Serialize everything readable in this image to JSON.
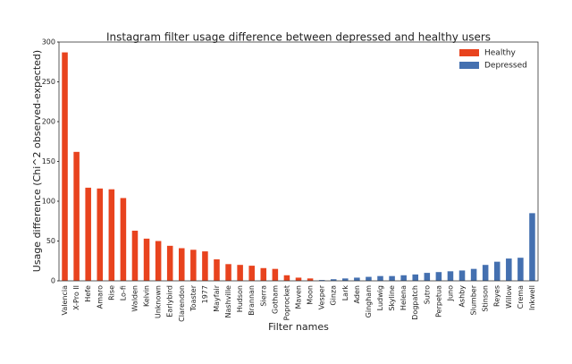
{
  "chart_data": {
    "type": "bar",
    "title": "Instagram filter usage difference between depressed and healthy users",
    "x_label": "Filter names",
    "y_label": "Usage difference (Chi^2 observed-expected)",
    "categories": [
      "Valencia",
      "X-Pro II",
      "Hefe",
      "Amaro",
      "Rise",
      "Lo-fi",
      "Walden",
      "Kelvin",
      "Unknown",
      "Earlybird",
      "Clarendon",
      "Toaster",
      "1977",
      "Mayfair",
      "Nashville",
      "Hudson",
      "Brannan",
      "Sierra",
      "Gotham",
      "Poprocket",
      "Maven",
      "Moon",
      "Vesper",
      "Ginza",
      "Lark",
      "Aden",
      "Gingham",
      "Ludwig",
      "Skyline",
      "Helena",
      "Dogpatch",
      "Sutro",
      "Perpetua",
      "Juno",
      "Ashby",
      "Slumber",
      "Stinson",
      "Reyes",
      "Willow",
      "Crema",
      "Inkwell"
    ],
    "series": [
      {
        "name": "Healthy",
        "color": "#e8431e",
        "values": [
          287,
          162,
          117,
          116,
          115,
          104,
          63,
          53,
          50,
          44,
          41,
          39,
          37,
          27,
          21,
          20,
          19,
          16,
          15,
          7,
          4,
          3,
          null,
          null,
          null,
          null,
          null,
          null,
          null,
          null,
          null,
          null,
          null,
          null,
          null,
          null,
          null,
          null,
          null,
          null,
          null
        ]
      },
      {
        "name": "Depressed",
        "color": "#4470b0",
        "values": [
          null,
          null,
          null,
          null,
          null,
          null,
          null,
          null,
          null,
          null,
          null,
          null,
          null,
          null,
          null,
          null,
          null,
          null,
          null,
          null,
          null,
          null,
          1,
          2,
          3,
          4,
          5,
          6,
          6,
          7,
          8,
          10,
          11,
          12,
          13,
          15,
          20,
          24,
          28,
          29,
          85
        ]
      }
    ],
    "ylim": [
      0,
      300
    ],
    "yticks": [
      0,
      50,
      100,
      150,
      200,
      250,
      300
    ],
    "legend": "upper right"
  }
}
